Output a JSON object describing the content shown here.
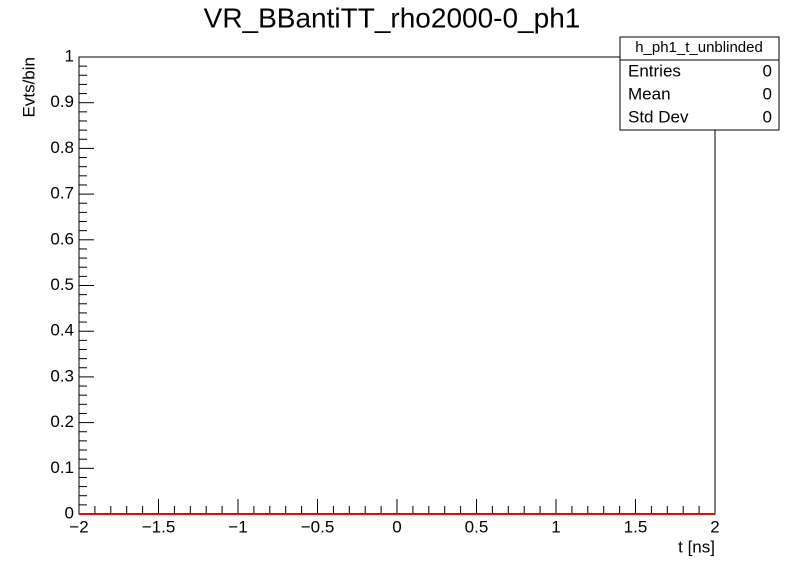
{
  "chart_data": {
    "type": "line",
    "title": "VR_BBantiTT_rho2000-0_ph1",
    "x_label": "t [ns]",
    "y_label": "Evts/bin",
    "x": [
      -2,
      2
    ],
    "values": [
      0,
      0
    ],
    "color": "#ff0000",
    "xlim": [
      -2,
      2
    ],
    "xticks": [
      {
        "value": -2,
        "label": "−2"
      },
      {
        "value": -1.5,
        "label": "−1.5"
      },
      {
        "value": -1,
        "label": "−1"
      },
      {
        "value": -0.5,
        "label": "−0.5"
      },
      0,
      0.5,
      1,
      1.5,
      2
    ],
    "ylim": [
      0,
      1
    ],
    "yticks": [
      0,
      0.1,
      0.2,
      0.3,
      0.4,
      0.5,
      0.6,
      0.7,
      0.8,
      0.9,
      1
    ],
    "stats": {
      "title": "h_ph1_t_unblinded",
      "rows": [
        {
          "label": "Entries",
          "value": 0
        },
        {
          "label": "Mean",
          "value": 0
        },
        {
          "label": "Std Dev",
          "value": 0
        }
      ]
    }
  }
}
